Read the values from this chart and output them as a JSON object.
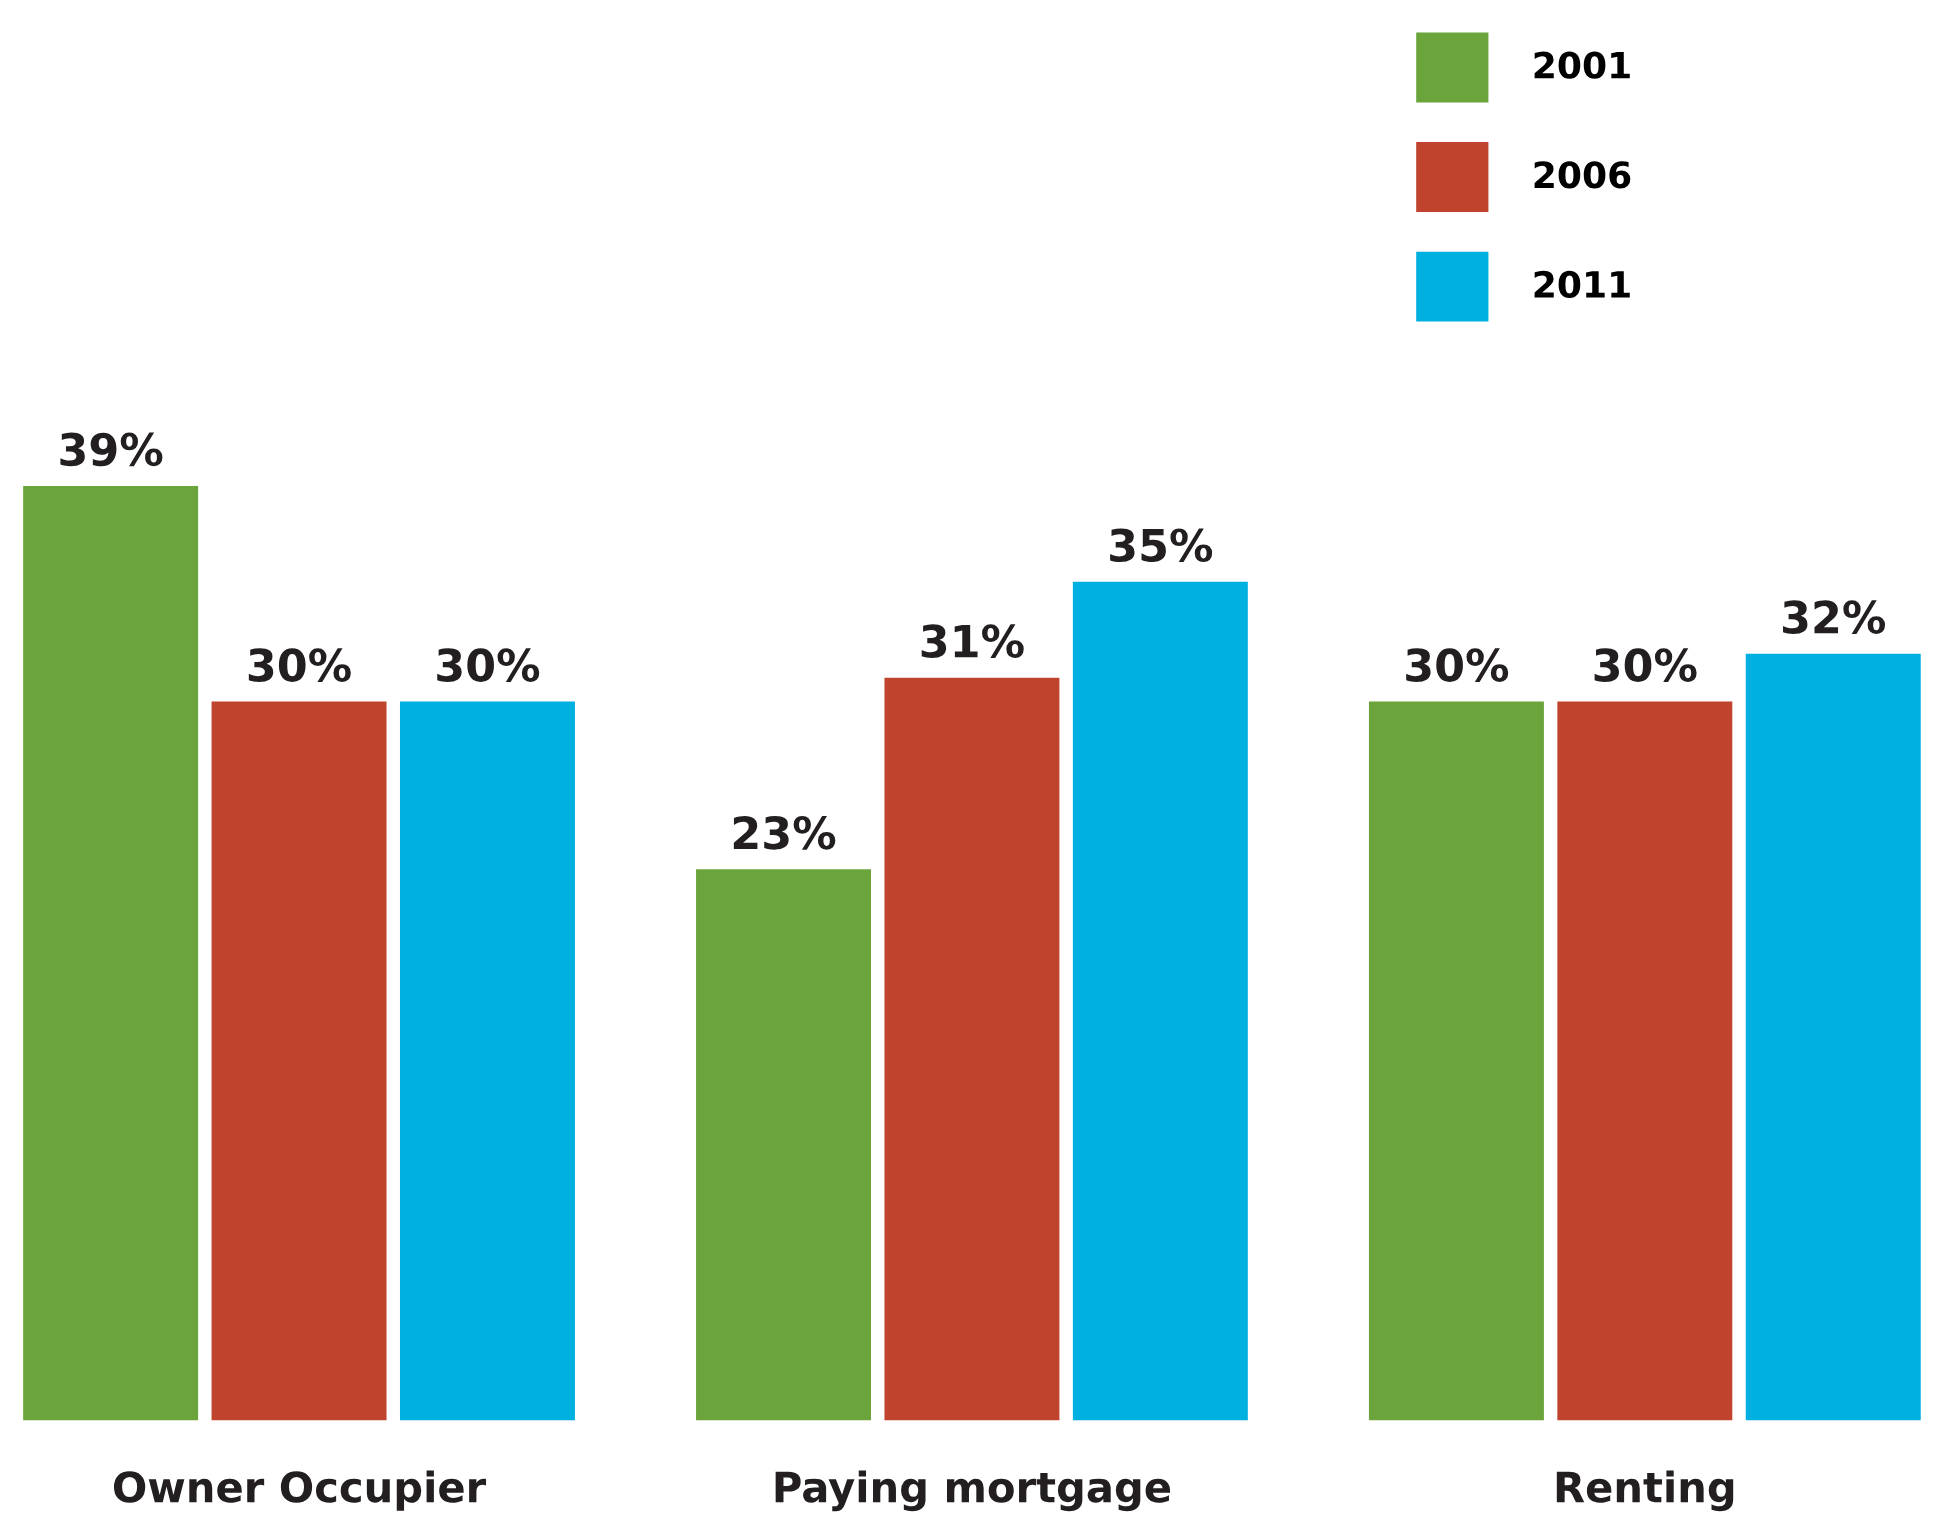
{
  "chart_data": {
    "type": "bar",
    "categories": [
      "Owner Occupier",
      "Paying mortgage",
      "Renting"
    ],
    "series": [
      {
        "name": "2001",
        "color": "#6aa43a",
        "values": [
          39,
          23,
          30
        ],
        "value_labels": [
          "39%",
          "23%",
          "30%"
        ]
      },
      {
        "name": "2006",
        "color": "#c0432e",
        "values": [
          30,
          31,
          30
        ],
        "value_labels": [
          "30%",
          "31%",
          "30%"
        ]
      },
      {
        "name": "2011",
        "color": "#00b0e0",
        "values": [
          30,
          35,
          32
        ],
        "value_labels": [
          "30%",
          "35%",
          "32%"
        ]
      }
    ],
    "legend": "top right",
    "grid": false
  }
}
